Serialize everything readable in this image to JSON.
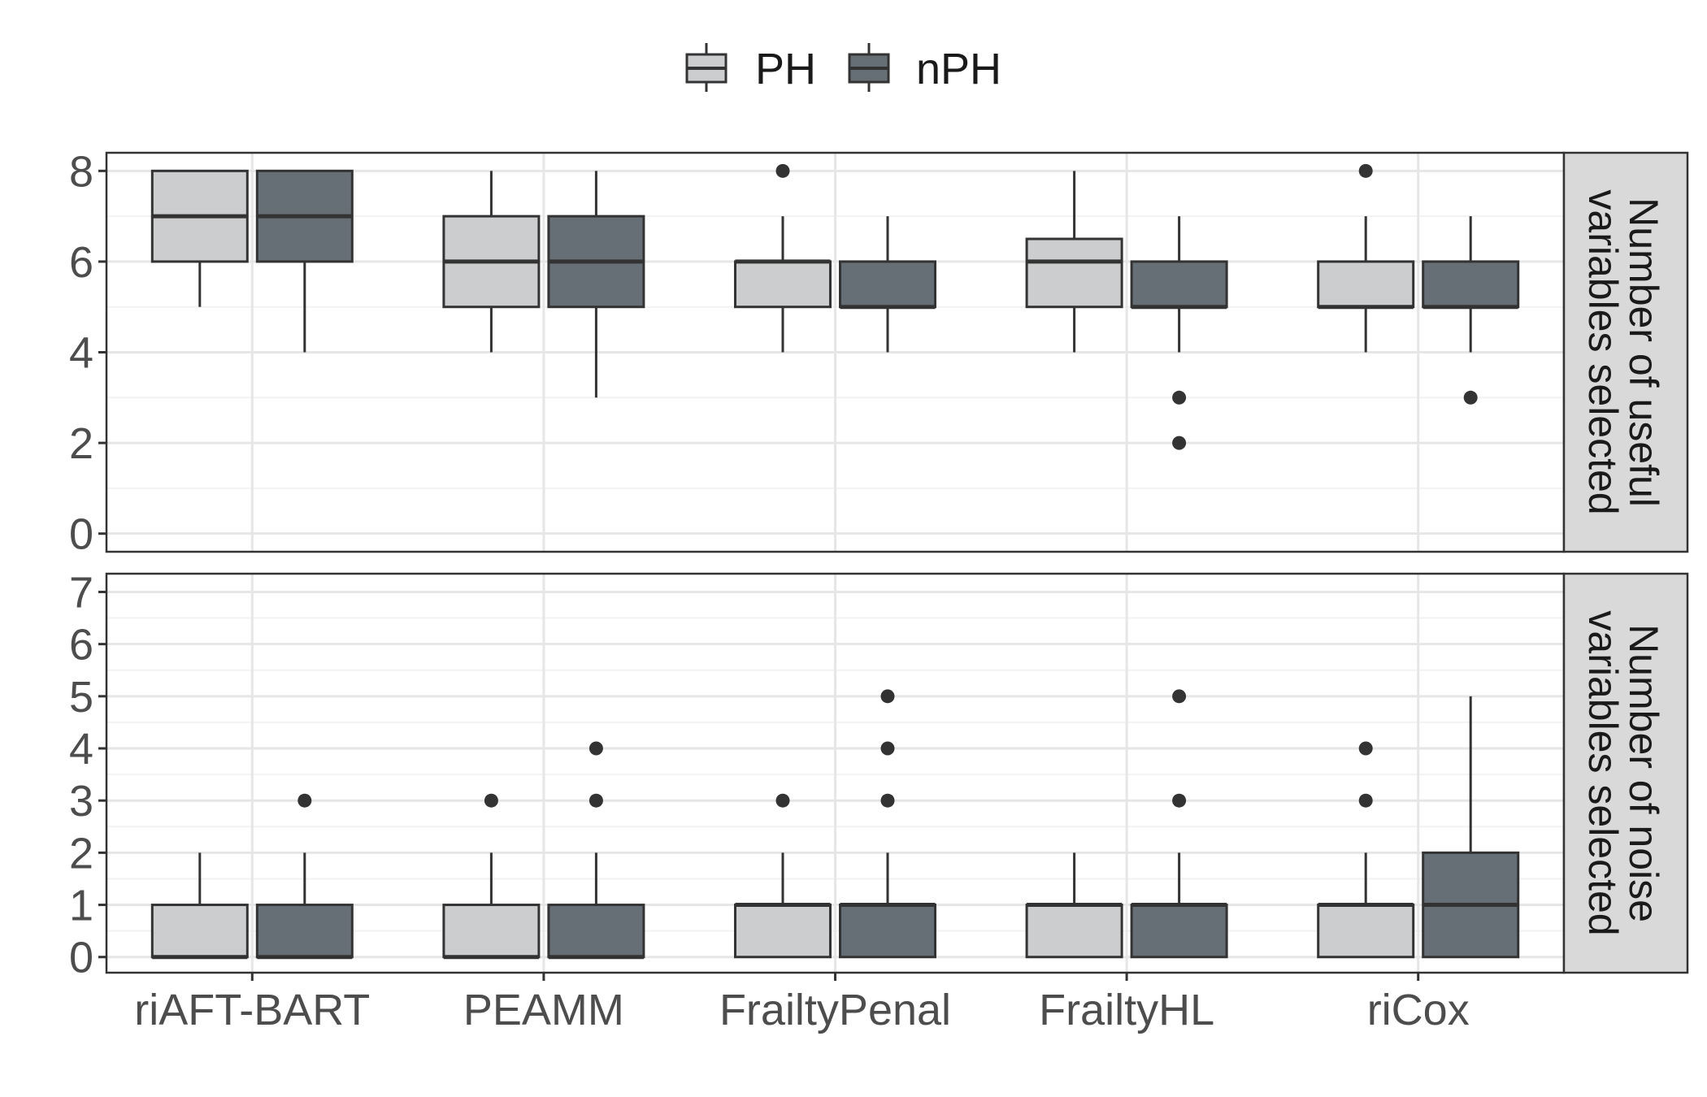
{
  "legend": {
    "position": "top",
    "entries": [
      {
        "label": "PH",
        "fill": "#cbcdcf"
      },
      {
        "label": "nPH",
        "fill": "#676f76"
      }
    ]
  },
  "chart_data": [
    {
      "type": "boxplot",
      "strip_label": [
        "Number of useful",
        "variables selected"
      ],
      "ylim": [
        -0.4,
        8.4
      ],
      "yticks": [
        0,
        2,
        4,
        6,
        8
      ],
      "minor_yticks": [
        1,
        3,
        5,
        7
      ],
      "grid": true,
      "categories": [
        "riAFT-BART",
        "PEAMM",
        "FrailtyPenal",
        "FrailtyHL",
        "riCox"
      ],
      "series": [
        {
          "name": "PH",
          "boxes": [
            {
              "whisker_low": 5,
              "q1": 6,
              "median": 7,
              "q3": 8,
              "whisker_high": 8,
              "outliers": []
            },
            {
              "whisker_low": 4,
              "q1": 5,
              "median": 6,
              "q3": 7,
              "whisker_high": 8,
              "outliers": []
            },
            {
              "whisker_low": 4,
              "q1": 5,
              "median": 6,
              "q3": 6,
              "whisker_high": 7,
              "outliers": [
                8
              ]
            },
            {
              "whisker_low": 4,
              "q1": 5,
              "median": 6,
              "q3": 6.5,
              "whisker_high": 8,
              "outliers": []
            },
            {
              "whisker_low": 4,
              "q1": 5,
              "median": 5,
              "q3": 6,
              "whisker_high": 7,
              "outliers": [
                8
              ]
            }
          ]
        },
        {
          "name": "nPH",
          "boxes": [
            {
              "whisker_low": 4,
              "q1": 6,
              "median": 7,
              "q3": 8,
              "whisker_high": 8,
              "outliers": []
            },
            {
              "whisker_low": 3,
              "q1": 5,
              "median": 6,
              "q3": 7,
              "whisker_high": 8,
              "outliers": []
            },
            {
              "whisker_low": 4,
              "q1": 5,
              "median": 5,
              "q3": 6,
              "whisker_high": 7,
              "outliers": []
            },
            {
              "whisker_low": 4,
              "q1": 5,
              "median": 5,
              "q3": 6,
              "whisker_high": 7,
              "outliers": [
                3,
                2
              ]
            },
            {
              "whisker_low": 4,
              "q1": 5,
              "median": 5,
              "q3": 6,
              "whisker_high": 7,
              "outliers": [
                3
              ]
            }
          ]
        }
      ]
    },
    {
      "type": "boxplot",
      "strip_label": [
        "Number of noise",
        "variables selected"
      ],
      "ylim": [
        -0.3,
        7.35
      ],
      "yticks": [
        0,
        1,
        2,
        3,
        4,
        5,
        6,
        7
      ],
      "minor_yticks": [
        0.5,
        1.5,
        2.5,
        3.5,
        4.5,
        5.5,
        6.5
      ],
      "grid": true,
      "categories": [
        "riAFT-BART",
        "PEAMM",
        "FrailtyPenal",
        "FrailtyHL",
        "riCox"
      ],
      "series": [
        {
          "name": "PH",
          "boxes": [
            {
              "whisker_low": 0,
              "q1": 0,
              "median": 0,
              "q3": 1,
              "whisker_high": 2,
              "outliers": []
            },
            {
              "whisker_low": 0,
              "q1": 0,
              "median": 0,
              "q3": 1,
              "whisker_high": 2,
              "outliers": [
                3
              ]
            },
            {
              "whisker_low": 0,
              "q1": 0,
              "median": 1,
              "q3": 1,
              "whisker_high": 2,
              "outliers": [
                3
              ]
            },
            {
              "whisker_low": 0,
              "q1": 0,
              "median": 1,
              "q3": 1,
              "whisker_high": 2,
              "outliers": []
            },
            {
              "whisker_low": 0,
              "q1": 0,
              "median": 1,
              "q3": 1,
              "whisker_high": 2,
              "outliers": [
                3,
                4
              ]
            }
          ]
        },
        {
          "name": "nPH",
          "boxes": [
            {
              "whisker_low": 0,
              "q1": 0,
              "median": 0,
              "q3": 1,
              "whisker_high": 2,
              "outliers": [
                3
              ]
            },
            {
              "whisker_low": 0,
              "q1": 0,
              "median": 0,
              "q3": 1,
              "whisker_high": 2,
              "outliers": [
                3,
                4
              ]
            },
            {
              "whisker_low": 0,
              "q1": 0,
              "median": 1,
              "q3": 1,
              "whisker_high": 2,
              "outliers": [
                3,
                4,
                5
              ]
            },
            {
              "whisker_low": 0,
              "q1": 0,
              "median": 1,
              "q3": 1,
              "whisker_high": 2,
              "outliers": [
                3,
                5
              ]
            },
            {
              "whisker_low": 0,
              "q1": 0,
              "median": 1,
              "q3": 2,
              "whisker_high": 5,
              "outliers": []
            }
          ]
        }
      ]
    }
  ]
}
